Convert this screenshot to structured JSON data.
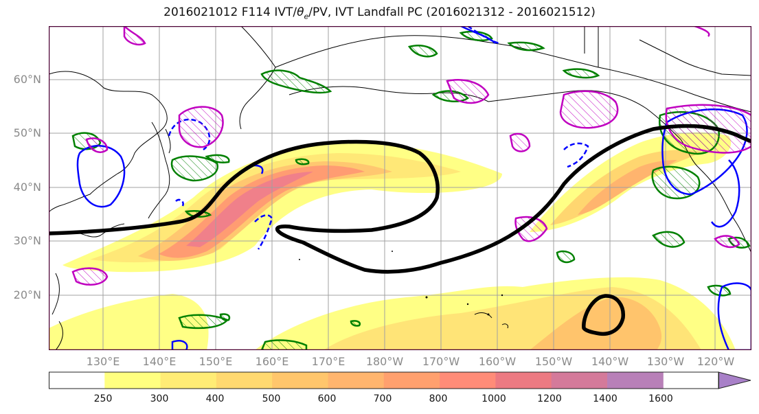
{
  "title_main": "2016021012 F114 IVT/",
  "title_symbol": "θ",
  "title_sub": "e",
  "title_rest": "/PV, IVT Landfall PC (2016021312 - 2016021512)",
  "map": {
    "lat_labels": [
      "60°N",
      "50°N",
      "40°N",
      "30°N",
      "20°N"
    ],
    "lon_labels": [
      "130°E",
      "140°E",
      "150°E",
      "160°E",
      "170°E",
      "180°W",
      "170°W",
      "160°W",
      "150°W",
      "140°W",
      "130°W",
      "120°W"
    ],
    "colors": {
      "frame": "#4b0033",
      "coast": "#000000",
      "grid": "#a0a0a0",
      "landfall_contour": "#000000",
      "green_contour": "#008000",
      "blue_contour": "#0000ff",
      "magenta_contour": "#c000c0"
    }
  },
  "colorbar": {
    "levels": [
      "250",
      "300",
      "400",
      "500",
      "600",
      "700",
      "800",
      "1000",
      "1200",
      "1400",
      "1600"
    ],
    "colors": [
      "#ffff80",
      "#ffec75",
      "#ffd970",
      "#ffc66c",
      "#ffb56e",
      "#ffa06e",
      "#ff8c78",
      "#ec7a82",
      "#d47a9a",
      "#b880b8",
      "#a880c8"
    ],
    "extend": "max"
  }
}
